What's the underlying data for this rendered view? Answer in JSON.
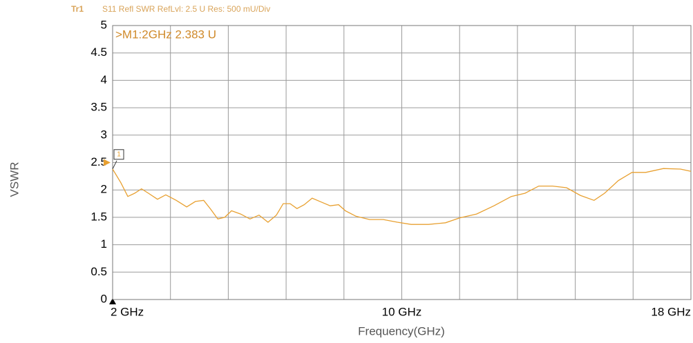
{
  "chart_data": {
    "type": "line",
    "header": {
      "trace": "Tr1",
      "text": "S11 Refl SWR RefLvl: 2.5  U Res: 500 mU/Div"
    },
    "marker": {
      "readout": ">M1:2GHz  2.383  U",
      "tag": "1",
      "x": 2,
      "value": 2.383
    },
    "ref_level": 2.5,
    "ylabel": "VSWR",
    "xlabel": "Frequency(GHz)",
    "x": [
      2.0,
      2.23,
      2.42,
      2.61,
      2.8,
      2.99,
      3.24,
      3.47,
      3.76,
      4.05,
      4.29,
      4.52,
      4.71,
      4.91,
      5.1,
      5.29,
      5.54,
      5.8,
      6.05,
      6.3,
      6.53,
      6.72,
      6.91,
      7.1,
      7.3,
      7.52,
      7.77,
      8.02,
      8.25,
      8.44,
      8.73,
      9.11,
      9.49,
      9.88,
      10.26,
      10.74,
      11.21,
      11.6,
      12.07,
      12.55,
      13.03,
      13.41,
      13.79,
      14.17,
      14.56,
      14.94,
      15.32,
      15.61,
      15.99,
      16.37,
      16.75,
      17.24,
      17.71,
      18.0
    ],
    "values": [
      2.38,
      2.13,
      1.88,
      1.94,
      2.02,
      1.94,
      1.83,
      1.91,
      1.81,
      1.69,
      1.79,
      1.81,
      1.65,
      1.47,
      1.5,
      1.62,
      1.56,
      1.47,
      1.54,
      1.41,
      1.54,
      1.75,
      1.75,
      1.66,
      1.73,
      1.85,
      1.78,
      1.71,
      1.73,
      1.62,
      1.52,
      1.46,
      1.46,
      1.41,
      1.37,
      1.37,
      1.4,
      1.49,
      1.56,
      1.71,
      1.88,
      1.94,
      2.07,
      2.07,
      2.04,
      1.9,
      1.81,
      1.94,
      2.17,
      2.32,
      2.32,
      2.39,
      2.38,
      2.34
    ],
    "color": "#e8a030",
    "xlim": [
      2,
      18
    ],
    "xticks": [
      {
        "value": 2,
        "label": "2 GHz"
      },
      {
        "value": 10,
        "label": "10 GHz"
      },
      {
        "value": 18,
        "label": "18 GHz"
      }
    ],
    "x_divisions": 10,
    "ylim": [
      0,
      5
    ],
    "yticks": [
      0,
      0.5,
      1,
      1.5,
      2,
      2.5,
      3,
      3.5,
      4,
      4.5,
      5
    ],
    "grid": true
  }
}
